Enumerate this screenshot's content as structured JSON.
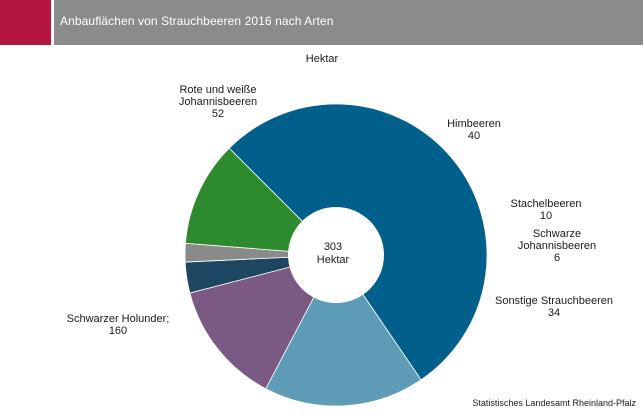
{
  "header": {
    "title": "Anbauflächen von Strauchbeeren 2016 nach Arten",
    "accent_color": "#b5163f",
    "bar_color": "#8b8b8b"
  },
  "chart_data": {
    "type": "pie",
    "subtitle": "Hektar",
    "center_label": {
      "value": "303",
      "unit": "Hektar"
    },
    "slices": [
      {
        "label": "Schwarzer Holunder;",
        "value": 160,
        "color": "#015f8b"
      },
      {
        "label": "Rote und weiße Johannisbeeren",
        "value": 52,
        "color": "#5e9bb7"
      },
      {
        "label": "Himbeeren",
        "value": 40,
        "color": "#7a5983"
      },
      {
        "label": "Stachelbeeren",
        "value": 10,
        "color": "#1d4661"
      },
      {
        "label": "Schwarze Johannisbeeren",
        "value": 6,
        "color": "#8a8a8a"
      },
      {
        "label": "Sonstige Strauchbeeren",
        "value": 34,
        "color": "#2e8a2e"
      }
    ]
  },
  "footer": {
    "source": "Statistisches Landesamt Rheinland-Pfalz"
  }
}
